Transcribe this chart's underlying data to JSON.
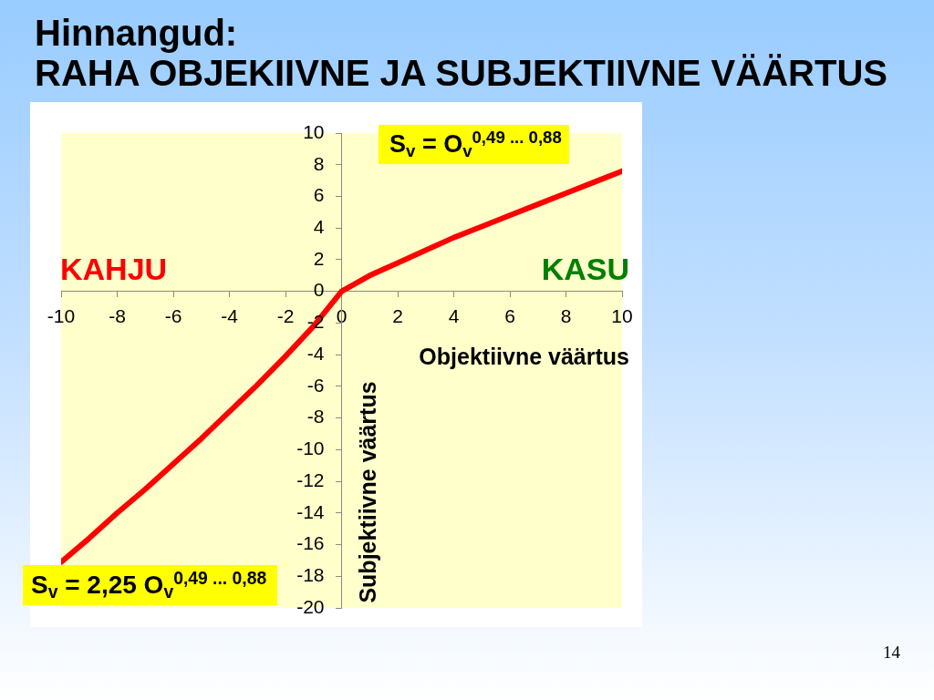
{
  "chart_data": {
    "type": "line",
    "title": "Hinnangud:",
    "subtitle": "RAHA OBJEKIIVNE JA SUBJEKTIIVNE VÄÄRTUS",
    "xlabel": "Objektiivne väärtus",
    "ylabel": "Subjektiivne väärtus",
    "annotations": [
      "S$_{v}$ = O$_{v}$$^{0,49 ... 0,88}$",
      "S$_{v}$ = 2,25 O$_{v}$$^{0,49 ... 0,88}$",
      "KAHJU",
      "KASU",
      "14"
    ],
    "x": [
      -10,
      -9,
      -8,
      -7,
      -6,
      -5,
      -4,
      -3,
      -2,
      -1,
      0,
      1,
      2,
      3,
      4,
      5,
      6,
      7,
      8,
      9,
      10
    ],
    "series": [
      {
        "color": "#ff0000",
        "values": [
          -17.1,
          -15.6,
          -14.0,
          -12.5,
          -10.9,
          -9.3,
          -7.6,
          -5.9,
          -4.1,
          -2.2,
          0,
          1.0,
          1.8,
          2.6,
          3.4,
          4.1,
          4.8,
          5.5,
          6.2,
          6.9,
          7.6
        ]
      }
    ],
    "xlim": [
      -10,
      10
    ],
    "xticks": [
      -10,
      -8,
      -6,
      -4,
      -2,
      0,
      2,
      4,
      6,
      8,
      10
    ],
    "ylim": [
      -20,
      10
    ],
    "yticks": [
      -20,
      -18,
      -16,
      -14,
      -12,
      -10,
      -8,
      -6,
      -4,
      -2,
      0,
      2,
      4,
      6,
      8,
      10
    ],
    "marker": "none",
    "line_style": "solid"
  }
}
